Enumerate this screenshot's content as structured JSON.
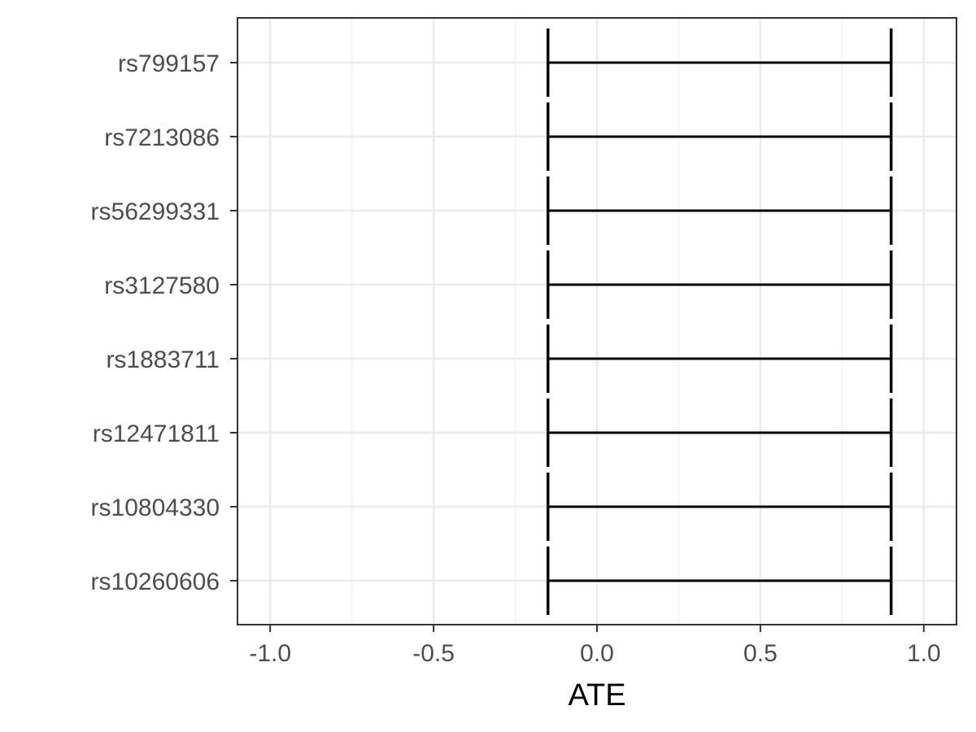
{
  "chart_data": {
    "type": "errorbar",
    "title": "",
    "xlabel": "ATE",
    "ylabel": "",
    "xlim": [
      -1.1,
      1.1
    ],
    "x_ticks": [
      -1.0,
      -0.5,
      0.0,
      0.5,
      1.0
    ],
    "x_tick_labels": [
      "-1.0",
      "-0.5",
      "0.0",
      "0.5",
      "1.0"
    ],
    "grid": true,
    "legend": "none",
    "categories": [
      "rs799157",
      "rs7213086",
      "rs56299331",
      "rs3127580",
      "rs1883711",
      "rs12471811",
      "rs10804330",
      "rs10260606"
    ],
    "intervals": [
      {
        "label": "rs799157",
        "lower": -0.15,
        "upper": 0.9
      },
      {
        "label": "rs7213086",
        "lower": -0.15,
        "upper": 0.9
      },
      {
        "label": "rs56299331",
        "lower": -0.15,
        "upper": 0.9
      },
      {
        "label": "rs3127580",
        "lower": -0.15,
        "upper": 0.9
      },
      {
        "label": "rs1883711",
        "lower": -0.15,
        "upper": 0.9
      },
      {
        "label": "rs12471811",
        "lower": -0.15,
        "upper": 0.9
      },
      {
        "label": "rs10804330",
        "lower": -0.15,
        "upper": 0.9
      },
      {
        "label": "rs10260606",
        "lower": -0.15,
        "upper": 0.9
      }
    ],
    "colors": {
      "background": "#ffffff",
      "panel_border": "#333333",
      "grid_major": "#ebebeb",
      "grid_minor": "#f2f2f2",
      "errorbar": "#000000",
      "tick_text": "#4d4d4d",
      "title_text": "#000000"
    }
  }
}
